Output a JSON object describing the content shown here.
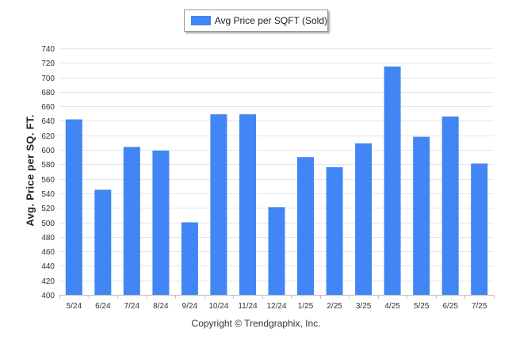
{
  "chart_data": {
    "type": "bar",
    "categories": [
      "5/24",
      "6/24",
      "7/24",
      "8/24",
      "9/24",
      "10/24",
      "11/24",
      "12/24",
      "1/25",
      "2/25",
      "3/25",
      "4/25",
      "5/25",
      "6/25",
      "7/25"
    ],
    "series": [
      {
        "name": "Avg Price per SQFT (Sold)",
        "values": [
          642,
          545,
          604,
          599,
          500,
          649,
          649,
          521,
          590,
          576,
          609,
          715,
          618,
          646,
          581
        ]
      }
    ],
    "ylabel": "Avg. Price per SQ. FT.",
    "xlabel": "",
    "ylim": [
      400,
      740
    ],
    "yticks": [
      400,
      420,
      440,
      460,
      480,
      500,
      520,
      540,
      560,
      580,
      600,
      620,
      640,
      660,
      680,
      700,
      720,
      740
    ],
    "grid": true,
    "legend_position": "top-center",
    "bar_color": "#4285f4"
  },
  "footer": {
    "copyright": "Copyright © Trendgraphix, Inc."
  }
}
